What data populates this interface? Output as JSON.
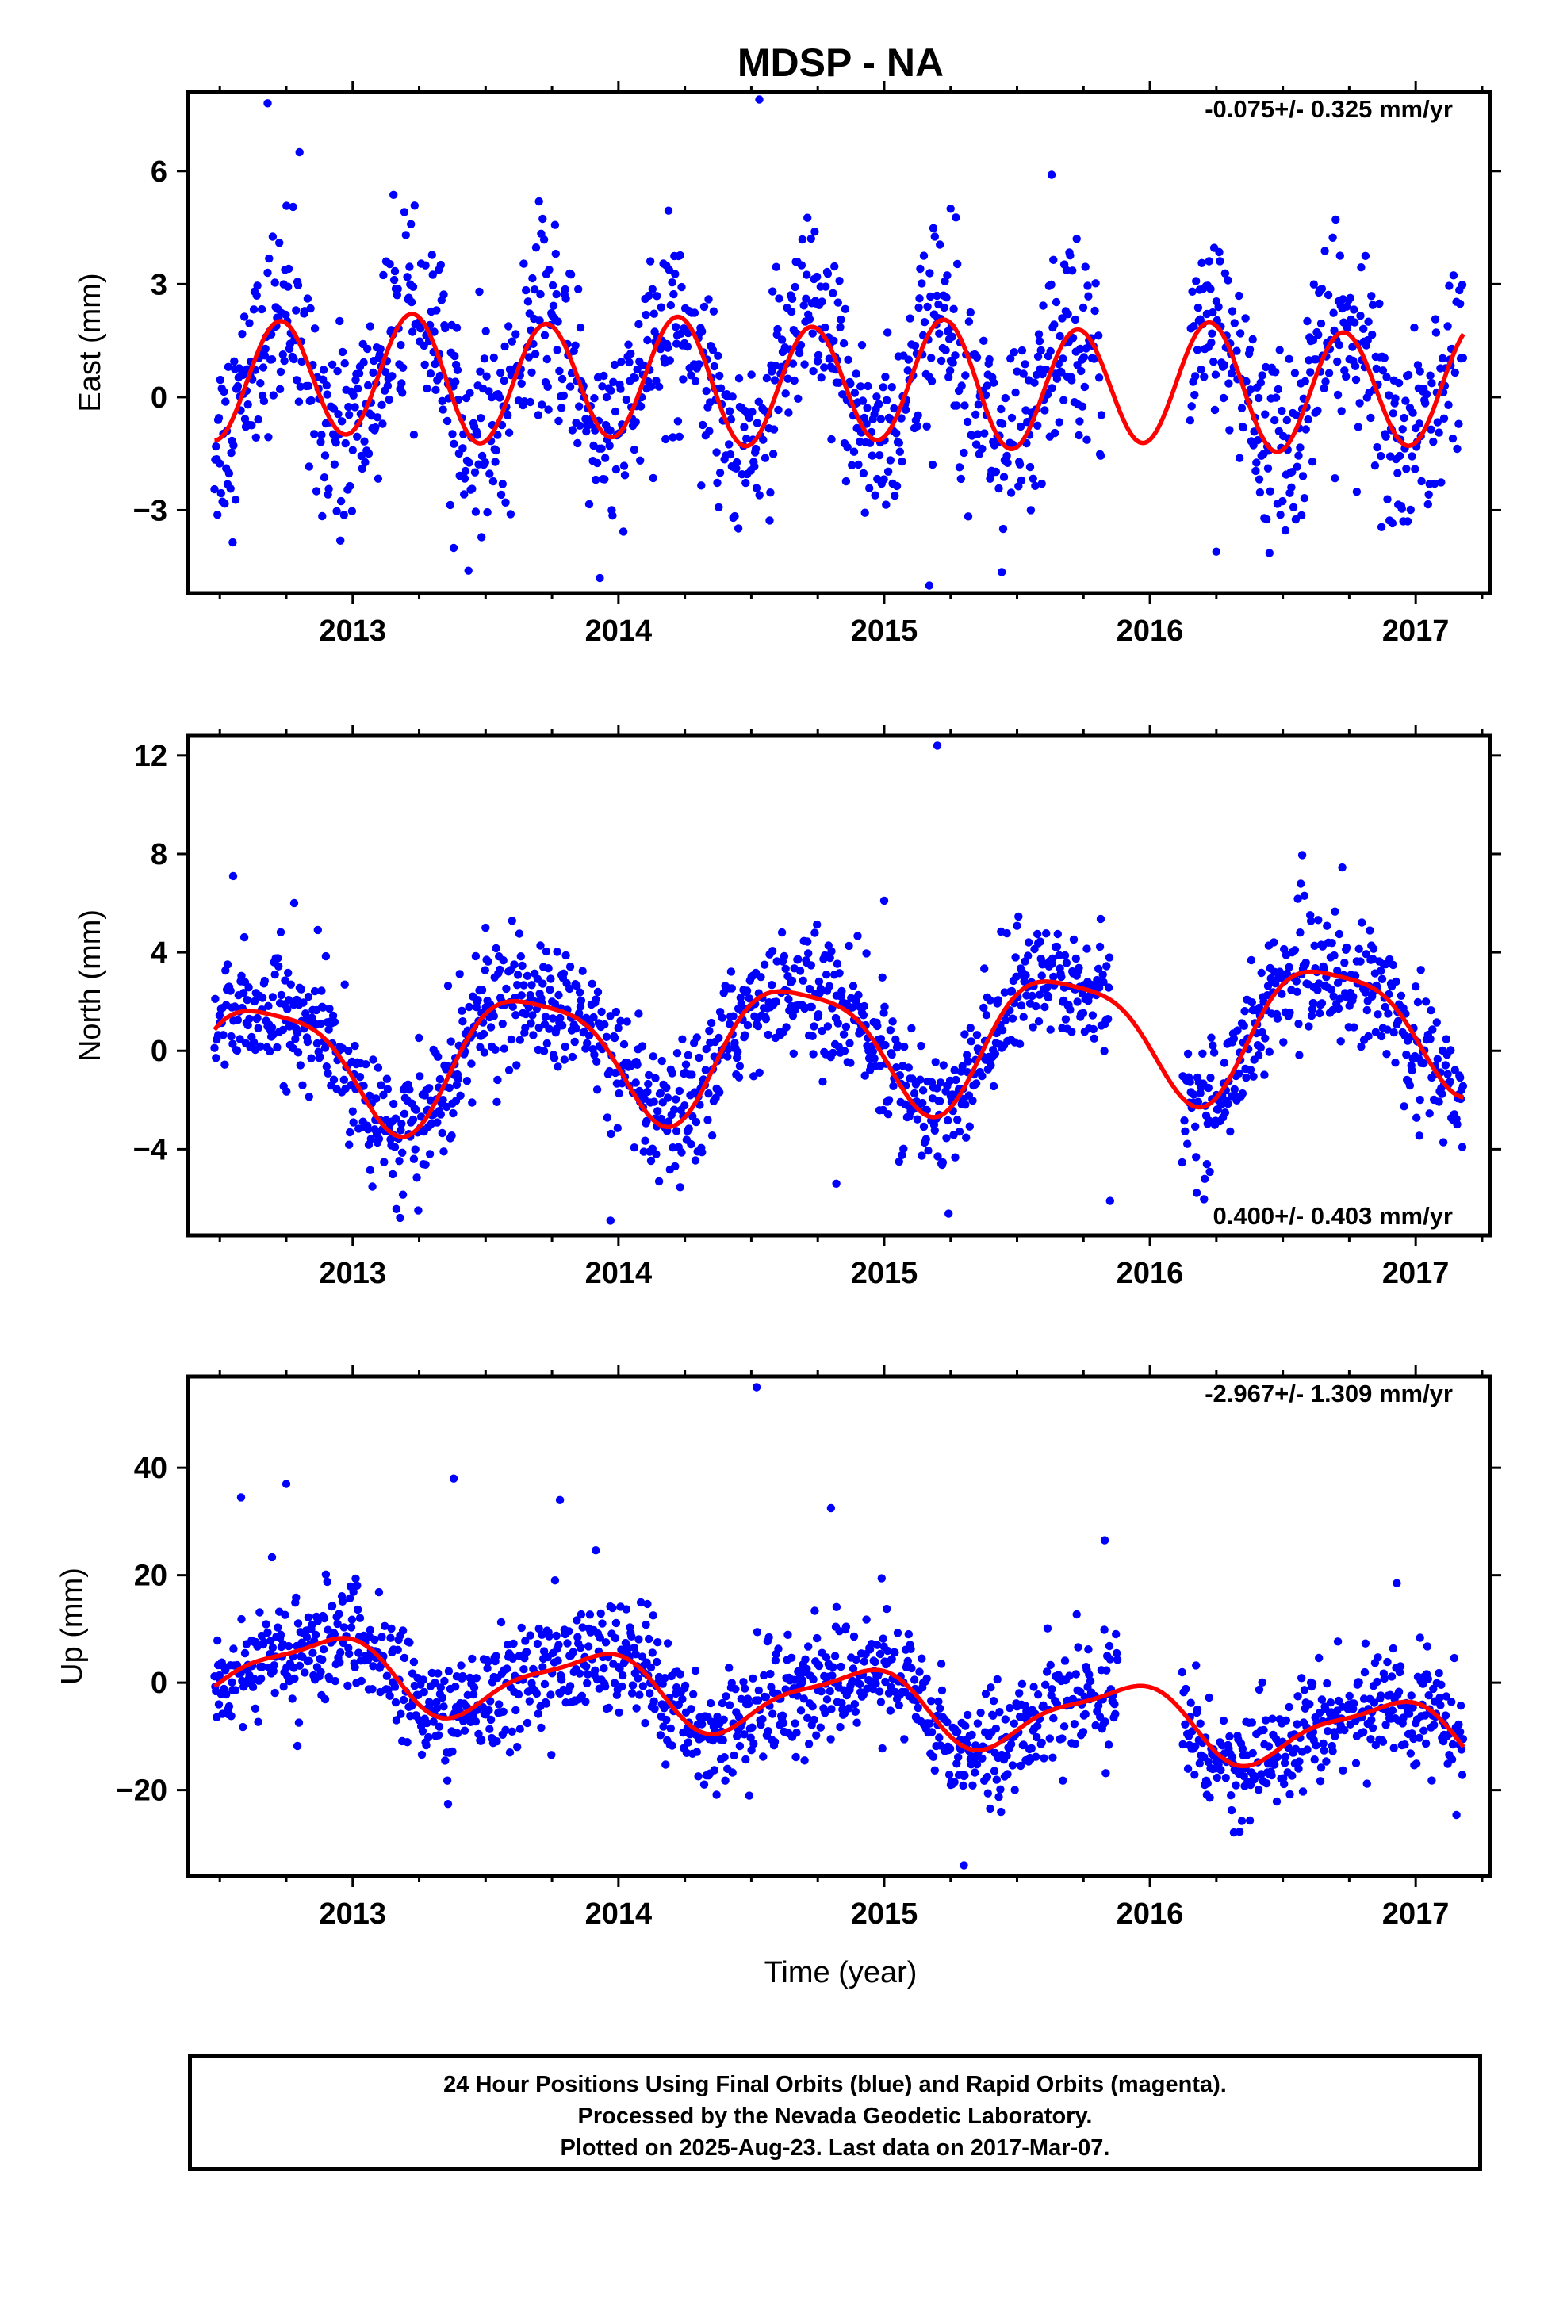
{
  "title": "MDSP - NA",
  "xlabel": "Time (year)",
  "caption": [
    "24 Hour Positions Using Final Orbits (blue) and Rapid Orbits (magenta).",
    "Processed by the Nevada Geodetic Laboratory.",
    "Plotted on 2025-Aug-23. Last data on 2017-Mar-07."
  ],
  "colors": {
    "points": "#0000ff",
    "fit": "#ff0000",
    "frame": "#000000"
  },
  "chart_data": [
    {
      "type": "scatter",
      "ylabel": "East (mm)",
      "rate_label": "-0.075+/- 0.325 mm/yr",
      "xlim": [
        2012.38,
        2017.28
      ],
      "ylim": [
        -5.2,
        8.1
      ],
      "x_ticks": [
        2013,
        2014,
        2015,
        2016,
        2017
      ],
      "y_ticks": [
        -3,
        0,
        3,
        6
      ],
      "y_tick_labels": [
        "−3",
        "0",
        "3",
        "6"
      ],
      "data_start": 2012.48,
      "data_end": 2017.18,
      "gaps": [
        [
          2015.82,
          2016.15
        ]
      ],
      "fit": {
        "offset": 0.55,
        "trend": -0.075,
        "a1": 0.15,
        "p1": -2.4,
        "a2": 1.6,
        "p2": -1.52,
        "amp_drift": 0.0,
        "ref": 2012.48
      },
      "noise_sd": 1.25,
      "outliers": [
        [
          2012.68,
          7.8
        ],
        [
          2012.8,
          6.5
        ],
        [
          2014.53,
          7.9
        ],
        [
          2015.25,
          5.0
        ],
        [
          2015.63,
          5.9
        ],
        [
          2013.93,
          -4.8
        ],
        [
          2015.17,
          -5.0
        ],
        [
          2013.38,
          -4.0
        ],
        [
          2016.25,
          -4.1
        ]
      ]
    },
    {
      "type": "scatter",
      "ylabel": "North (mm)",
      "rate_label": "0.400+/- 0.403 mm/yr",
      "xlim": [
        2012.38,
        2017.28
      ],
      "ylim": [
        -7.5,
        12.8
      ],
      "x_ticks": [
        2013,
        2014,
        2015,
        2016,
        2017
      ],
      "y_ticks": [
        -4,
        0,
        4,
        8,
        12
      ],
      "y_tick_labels": [
        "−4",
        "0",
        "4",
        "8",
        "12"
      ],
      "data_start": 2012.48,
      "data_end": 2017.18,
      "gaps": [
        [
          2015.85,
          2016.12
        ]
      ],
      "fit": {
        "offset": -0.6,
        "trend": 0.4,
        "a1": 2.6,
        "p1": 0.35,
        "a2": 0.6,
        "p2": 1.9,
        "amp_drift": 0.0,
        "ref": 2012.48
      },
      "noise_sd": 1.25,
      "outliers": [
        [
          2015.2,
          12.4
        ],
        [
          2012.55,
          7.1
        ],
        [
          2012.78,
          6.0
        ],
        [
          2013.5,
          5.0
        ],
        [
          2015.0,
          6.1
        ],
        [
          2013.97,
          -6.9
        ],
        [
          2015.85,
          -6.1
        ],
        [
          2014.82,
          -5.4
        ]
      ]
    },
    {
      "type": "scatter",
      "ylabel": "Up (mm)",
      "rate_label": "-2.967+/- 1.309 mm/yr",
      "xlim": [
        2012.38,
        2017.28
      ],
      "ylim": [
        -36,
        57
      ],
      "x_ticks": [
        2013,
        2014,
        2015,
        2016,
        2017
      ],
      "y_ticks": [
        -20,
        0,
        20,
        40
      ],
      "y_tick_labels": [
        "−20",
        "0",
        "20",
        "40"
      ],
      "data_start": 2012.48,
      "data_end": 2017.18,
      "gaps": [
        [
          2015.88,
          2016.12
        ]
      ],
      "fit": {
        "offset": 3.5,
        "trend": -2.967,
        "a1": 6.2,
        "p1": -1.0,
        "a2": 1.8,
        "p2": 0.6,
        "amp_drift": 0.0,
        "ref": 2012.48
      },
      "noise_sd": 5.2,
      "outliers": [
        [
          2014.52,
          55.0
        ],
        [
          2013.38,
          38.0
        ],
        [
          2012.75,
          37.0
        ],
        [
          2013.78,
          34.0
        ],
        [
          2014.8,
          32.5
        ],
        [
          2015.3,
          -34.0
        ],
        [
          2012.58,
          34.5
        ],
        [
          2015.83,
          26.5
        ]
      ]
    }
  ]
}
